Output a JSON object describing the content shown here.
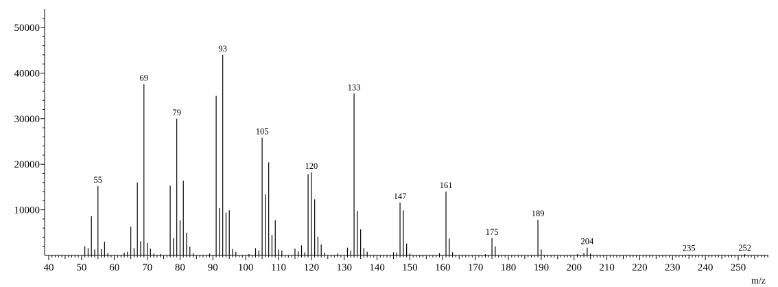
{
  "chart_data": {
    "type": "bar",
    "title": "",
    "xlabel": "m/z",
    "ylabel": "",
    "xlim": [
      40,
      260
    ],
    "ylim": [
      0,
      52000
    ],
    "x_ticks": [
      40,
      50,
      60,
      70,
      80,
      90,
      100,
      110,
      120,
      130,
      140,
      150,
      160,
      170,
      180,
      190,
      200,
      210,
      220,
      230,
      240,
      250
    ],
    "y_ticks": [
      10000,
      20000,
      30000,
      40000,
      50000
    ],
    "grid": false,
    "legend": "none",
    "labeled_peaks": [
      55,
      69,
      79,
      93,
      105,
      120,
      133,
      147,
      161,
      175,
      189,
      204,
      235,
      252
    ],
    "peaks": [
      {
        "x": 51,
        "y": 2000
      },
      {
        "x": 52,
        "y": 1600
      },
      {
        "x": 53,
        "y": 8600
      },
      {
        "x": 54,
        "y": 1300
      },
      {
        "x": 55,
        "y": 15200
      },
      {
        "x": 56,
        "y": 1400
      },
      {
        "x": 57,
        "y": 3000
      },
      {
        "x": 58,
        "y": 500
      },
      {
        "x": 63,
        "y": 600
      },
      {
        "x": 64,
        "y": 800
      },
      {
        "x": 65,
        "y": 6300
      },
      {
        "x": 66,
        "y": 1600
      },
      {
        "x": 67,
        "y": 16000
      },
      {
        "x": 68,
        "y": 3100
      },
      {
        "x": 69,
        "y": 37600
      },
      {
        "x": 70,
        "y": 2700
      },
      {
        "x": 71,
        "y": 1500
      },
      {
        "x": 72,
        "y": 400
      },
      {
        "x": 74,
        "y": 300
      },
      {
        "x": 77,
        "y": 15300
      },
      {
        "x": 78,
        "y": 3800
      },
      {
        "x": 79,
        "y": 30000
      },
      {
        "x": 80,
        "y": 7700
      },
      {
        "x": 81,
        "y": 16400
      },
      {
        "x": 82,
        "y": 5000
      },
      {
        "x": 83,
        "y": 1900
      },
      {
        "x": 84,
        "y": 500
      },
      {
        "x": 89,
        "y": 400
      },
      {
        "x": 91,
        "y": 35000
      },
      {
        "x": 92,
        "y": 10400
      },
      {
        "x": 93,
        "y": 44000
      },
      {
        "x": 94,
        "y": 9400
      },
      {
        "x": 95,
        "y": 9900
      },
      {
        "x": 96,
        "y": 1400
      },
      {
        "x": 97,
        "y": 800
      },
      {
        "x": 101,
        "y": 300
      },
      {
        "x": 103,
        "y": 1600
      },
      {
        "x": 104,
        "y": 1100
      },
      {
        "x": 105,
        "y": 25800
      },
      {
        "x": 106,
        "y": 13400
      },
      {
        "x": 107,
        "y": 20400
      },
      {
        "x": 108,
        "y": 4500
      },
      {
        "x": 109,
        "y": 7700
      },
      {
        "x": 110,
        "y": 1300
      },
      {
        "x": 111,
        "y": 1100
      },
      {
        "x": 115,
        "y": 1500
      },
      {
        "x": 116,
        "y": 900
      },
      {
        "x": 117,
        "y": 2200
      },
      {
        "x": 118,
        "y": 700
      },
      {
        "x": 119,
        "y": 17800
      },
      {
        "x": 120,
        "y": 18200
      },
      {
        "x": 121,
        "y": 12300
      },
      {
        "x": 122,
        "y": 4100
      },
      {
        "x": 123,
        "y": 2400
      },
      {
        "x": 124,
        "y": 600
      },
      {
        "x": 128,
        "y": 400
      },
      {
        "x": 131,
        "y": 1700
      },
      {
        "x": 132,
        "y": 1100
      },
      {
        "x": 133,
        "y": 35500
      },
      {
        "x": 134,
        "y": 9800
      },
      {
        "x": 135,
        "y": 5700
      },
      {
        "x": 136,
        "y": 1600
      },
      {
        "x": 137,
        "y": 800
      },
      {
        "x": 145,
        "y": 700
      },
      {
        "x": 146,
        "y": 600
      },
      {
        "x": 147,
        "y": 11600
      },
      {
        "x": 148,
        "y": 9900
      },
      {
        "x": 149,
        "y": 2600
      },
      {
        "x": 150,
        "y": 400
      },
      {
        "x": 159,
        "y": 500
      },
      {
        "x": 161,
        "y": 14000
      },
      {
        "x": 162,
        "y": 3700
      },
      {
        "x": 163,
        "y": 700
      },
      {
        "x": 173,
        "y": 300
      },
      {
        "x": 175,
        "y": 3800
      },
      {
        "x": 176,
        "y": 2000
      },
      {
        "x": 189,
        "y": 7800
      },
      {
        "x": 190,
        "y": 1300
      },
      {
        "x": 201,
        "y": 300
      },
      {
        "x": 203,
        "y": 500
      },
      {
        "x": 204,
        "y": 1700
      },
      {
        "x": 205,
        "y": 400
      },
      {
        "x": 235,
        "y": 200
      },
      {
        "x": 252,
        "y": 300
      }
    ]
  }
}
